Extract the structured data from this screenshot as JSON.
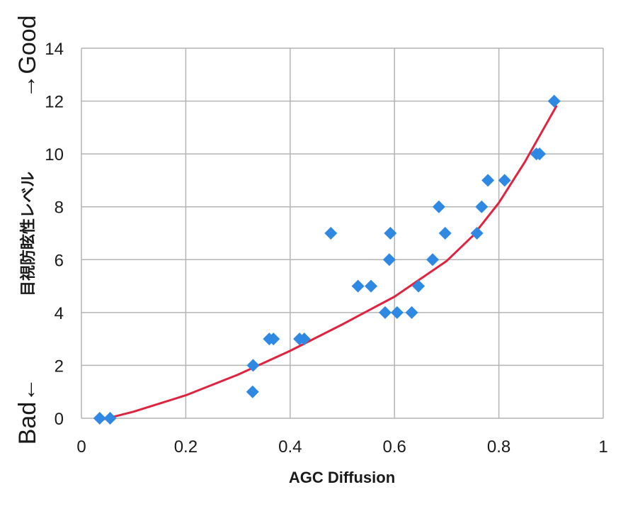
{
  "chart_data": {
    "type": "scatter",
    "title": "",
    "xlabel": "AGC Diffusion",
    "ylabel": "目視防眩性レベル",
    "xlim": [
      0,
      1
    ],
    "ylim": [
      0,
      14
    ],
    "x_ticks": [
      "0",
      "0.2",
      "0.4",
      "0.6",
      "0.8",
      "1"
    ],
    "y_ticks": [
      "0",
      "2",
      "4",
      "6",
      "8",
      "10",
      "12",
      "14"
    ],
    "grid": true,
    "annotations": {
      "good": "→Good",
      "bad": "Bad←"
    },
    "series": [
      {
        "color": "#2f89e3",
        "marker": "diamond",
        "points": [
          {
            "x": 0.035,
            "y": 0
          },
          {
            "x": 0.055,
            "y": 0
          },
          {
            "x": 0.328,
            "y": 1
          },
          {
            "x": 0.329,
            "y": 2
          },
          {
            "x": 0.36,
            "y": 3
          },
          {
            "x": 0.368,
            "y": 3
          },
          {
            "x": 0.418,
            "y": 3
          },
          {
            "x": 0.427,
            "y": 3
          },
          {
            "x": 0.478,
            "y": 7
          },
          {
            "x": 0.53,
            "y": 5
          },
          {
            "x": 0.555,
            "y": 5
          },
          {
            "x": 0.582,
            "y": 4
          },
          {
            "x": 0.59,
            "y": 6
          },
          {
            "x": 0.592,
            "y": 7
          },
          {
            "x": 0.605,
            "y": 4
          },
          {
            "x": 0.633,
            "y": 4
          },
          {
            "x": 0.646,
            "y": 5
          },
          {
            "x": 0.673,
            "y": 6
          },
          {
            "x": 0.685,
            "y": 8
          },
          {
            "x": 0.697,
            "y": 7
          },
          {
            "x": 0.758,
            "y": 7
          },
          {
            "x": 0.767,
            "y": 8
          },
          {
            "x": 0.779,
            "y": 9
          },
          {
            "x": 0.811,
            "y": 9
          },
          {
            "x": 0.872,
            "y": 10
          },
          {
            "x": 0.878,
            "y": 10
          },
          {
            "x": 0.906,
            "y": 12
          }
        ]
      }
    ],
    "trendline": {
      "color": "#e0233f",
      "points": [
        {
          "x": 0.04,
          "y": -0.05
        },
        {
          "x": 0.1,
          "y": 0.25
        },
        {
          "x": 0.2,
          "y": 0.87
        },
        {
          "x": 0.3,
          "y": 1.65
        },
        {
          "x": 0.4,
          "y": 2.55
        },
        {
          "x": 0.5,
          "y": 3.55
        },
        {
          "x": 0.6,
          "y": 4.6
        },
        {
          "x": 0.7,
          "y": 5.95
        },
        {
          "x": 0.75,
          "y": 6.9
        },
        {
          "x": 0.8,
          "y": 8.15
        },
        {
          "x": 0.85,
          "y": 9.7
        },
        {
          "x": 0.91,
          "y": 11.8
        }
      ]
    }
  }
}
